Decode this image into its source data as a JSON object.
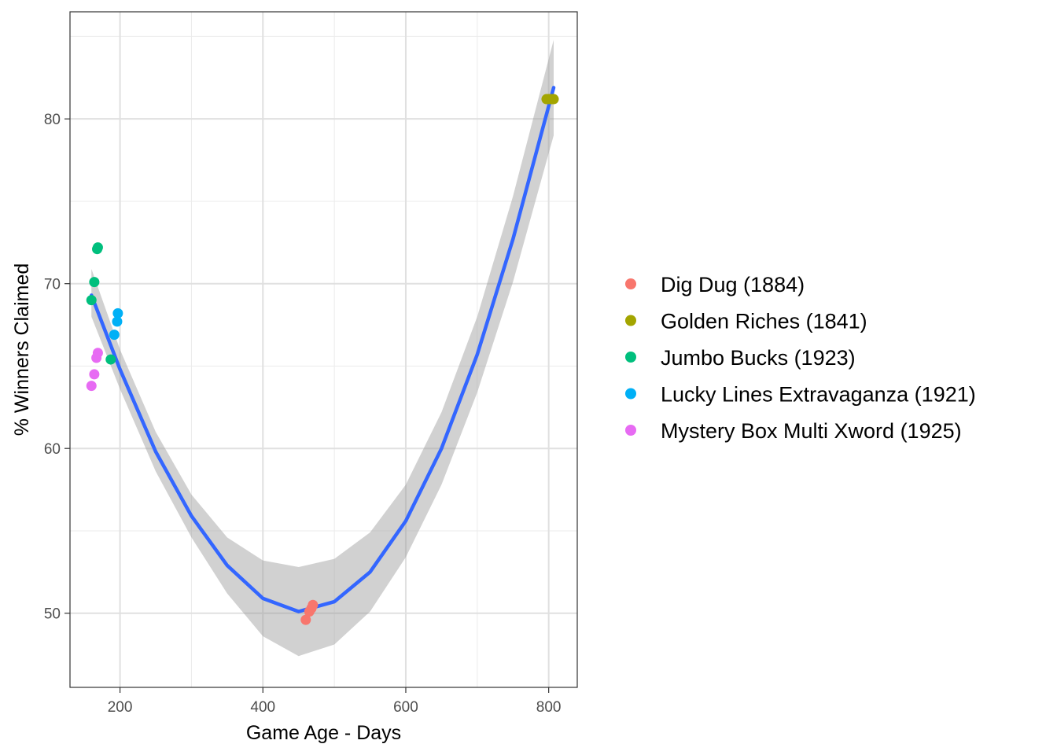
{
  "chart_data": {
    "type": "scatter",
    "xlabel": "Game Age - Days",
    "ylabel": "% Winners Claimed",
    "xlim": [
      130,
      840
    ],
    "ylim": [
      45.5,
      86.5
    ],
    "x_ticks": [
      200,
      400,
      600,
      800
    ],
    "x_tick_labels": [
      "200",
      "400",
      "600",
      "800"
    ],
    "y_ticks": [
      50,
      60,
      70,
      80
    ],
    "y_tick_labels": [
      "50",
      "60",
      "70",
      "80"
    ],
    "grid": true,
    "legend_position": "right",
    "series": [
      {
        "name": "Dig Dug (1884)",
        "color": "#F8766D",
        "points": [
          [
            460,
            49.6
          ],
          [
            465,
            50.1
          ],
          [
            468,
            50.3
          ],
          [
            470,
            50.5
          ]
        ]
      },
      {
        "name": "Golden Riches (1841)",
        "color": "#A3A500",
        "points": [
          [
            797,
            81.2
          ],
          [
            800,
            81.2
          ],
          [
            804,
            81.2
          ],
          [
            807,
            81.2
          ]
        ]
      },
      {
        "name": "Jumbo Bucks (1923)",
        "color": "#00BF7D",
        "points": [
          [
            160,
            69.0
          ],
          [
            164,
            70.1
          ],
          [
            168,
            72.1
          ],
          [
            169,
            72.2
          ],
          [
            187,
            65.4
          ]
        ]
      },
      {
        "name": "Lucky Lines Extravaganza (1921)",
        "color": "#00B0F6",
        "points": [
          [
            192,
            66.9
          ],
          [
            196,
            67.7
          ],
          [
            197,
            68.2
          ]
        ]
      },
      {
        "name": "Mystery Box Multi Xword (1925)",
        "color": "#E76BF3",
        "points": [
          [
            160,
            63.8
          ],
          [
            164,
            64.5
          ],
          [
            167,
            65.5
          ],
          [
            169,
            65.8
          ]
        ]
      }
    ],
    "smooth": {
      "method": "quadratic",
      "color": "#3366FF",
      "band_color": "#999999",
      "x": [
        160,
        200,
        250,
        300,
        350,
        400,
        450,
        500,
        550,
        600,
        650,
        700,
        750,
        807
      ],
      "y": [
        69.3,
        64.8,
        59.8,
        55.9,
        52.9,
        50.9,
        50.1,
        50.7,
        52.5,
        55.6,
        60.0,
        65.7,
        72.7,
        81.9
      ],
      "ymin": [
        68.0,
        63.6,
        58.6,
        54.6,
        51.2,
        48.6,
        47.4,
        48.1,
        50.1,
        53.4,
        57.8,
        63.4,
        70.1,
        79.0
      ],
      "ymax": [
        70.9,
        66.0,
        61.0,
        57.2,
        54.6,
        53.2,
        52.8,
        53.3,
        54.9,
        57.8,
        62.2,
        68.0,
        75.3,
        84.8
      ]
    }
  }
}
